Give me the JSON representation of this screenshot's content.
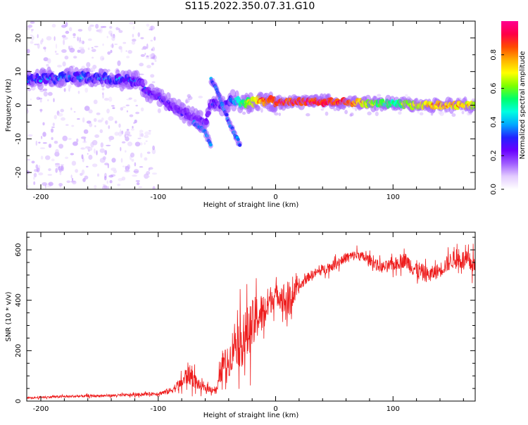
{
  "title": "S115.2022.350.07.31.G10",
  "colors": {
    "snr_line": "#ee1c1c",
    "axis": "#000000"
  },
  "colorbar": {
    "label": "Normalized spectral amplitude",
    "ticks": [
      "0.0",
      "0.2",
      "0.4",
      "0.6",
      "0.8"
    ],
    "colormap": [
      "#ffffff",
      "#e3ccff",
      "#9f5bff",
      "#6a00ff",
      "#2222ff",
      "#00a8ff",
      "#00ffe0",
      "#00ff6a",
      "#7dff00",
      "#ffff00",
      "#ffb000",
      "#ff4b00",
      "#ff0046",
      "#ff0090"
    ]
  },
  "chart_data": [
    {
      "type": "heatmap",
      "xlabel": "Height of straight line (km)",
      "ylabel": "Frequency (Hz)",
      "xlim": [
        -212,
        170
      ],
      "ylim": [
        -25,
        25
      ],
      "xticks": [
        -200,
        -100,
        0,
        100
      ],
      "yticks": [
        -20,
        -10,
        0,
        10,
        20
      ],
      "colorbar_range": [
        0,
        1
      ],
      "ridge": {
        "x": [
          -210,
          -190,
          -170,
          -150,
          -130,
          -115,
          -110,
          -100,
          -90,
          -80,
          -70,
          -60,
          -55,
          -50,
          -45,
          -40,
          -35,
          -30,
          -20,
          -10,
          0,
          20,
          40,
          60,
          80,
          100,
          120,
          140,
          160,
          170
        ],
        "freq": [
          7.5,
          8.0,
          8.5,
          8.0,
          7.5,
          7.0,
          4.0,
          3.0,
          0.0,
          -2.0,
          -3.5,
          -5.0,
          0.5,
          0.5,
          0.0,
          1.0,
          1.5,
          0.5,
          1.0,
          1.5,
          1.0,
          1.0,
          1.0,
          1.0,
          0.5,
          0.5,
          0.0,
          0.0,
          0.0,
          0.0
        ],
        "amplitude": [
          0.35,
          0.38,
          0.4,
          0.38,
          0.36,
          0.33,
          0.3,
          0.28,
          0.27,
          0.26,
          0.25,
          0.25,
          0.3,
          0.32,
          0.34,
          0.38,
          0.45,
          0.55,
          0.75,
          0.9,
          0.95,
          0.97,
          0.98,
          0.97,
          0.7,
          0.6,
          0.75,
          0.85,
          0.8,
          0.75
        ]
      },
      "branches": [
        {
          "x": [
            -70,
            -60,
            -55
          ],
          "freq": [
            -5,
            -8,
            -12
          ]
        },
        {
          "x": [
            -55,
            -48,
            -40,
            -30
          ],
          "freq": [
            7.5,
            3.0,
            -5.0,
            -12.0
          ]
        }
      ]
    },
    {
      "type": "line",
      "xlabel": "Height of straight line (km)",
      "ylabel": "SNR (10 * v/v)",
      "xlim": [
        -212,
        170
      ],
      "ylim": [
        0,
        670
      ],
      "xticks": [
        -200,
        -100,
        0,
        100
      ],
      "yticks": [
        0,
        200,
        400,
        600
      ],
      "series": [
        {
          "x": [
            -210,
            -200,
            -180,
            -160,
            -140,
            -120,
            -110,
            -100,
            -90,
            -80,
            -75,
            -70,
            -65,
            -60,
            -50,
            -45,
            -40,
            -35,
            -30,
            -25,
            -20,
            -15,
            -10,
            -5,
            0,
            5,
            10,
            15,
            20,
            25,
            30,
            40,
            50,
            60,
            70,
            80,
            90,
            100,
            110,
            120,
            130,
            140,
            150,
            160,
            170
          ],
          "y": [
            12,
            15,
            18,
            20,
            22,
            25,
            28,
            30,
            40,
            70,
            110,
            90,
            60,
            50,
            45,
            150,
            150,
            240,
            230,
            260,
            300,
            340,
            350,
            400,
            420,
            420,
            380,
            420,
            450,
            480,
            500,
            520,
            540,
            570,
            580,
            560,
            530,
            540,
            560,
            520,
            500,
            520,
            560,
            560,
            540
          ],
          "spread": [
            8,
            8,
            10,
            10,
            10,
            12,
            12,
            15,
            25,
            50,
            90,
            70,
            40,
            25,
            30,
            120,
            120,
            170,
            200,
            220,
            200,
            180,
            160,
            120,
            80,
            100,
            200,
            100,
            40,
            40,
            35,
            40,
            40,
            40,
            40,
            40,
            45,
            50,
            60,
            80,
            60,
            60,
            70,
            80,
            80
          ]
        }
      ]
    }
  ]
}
